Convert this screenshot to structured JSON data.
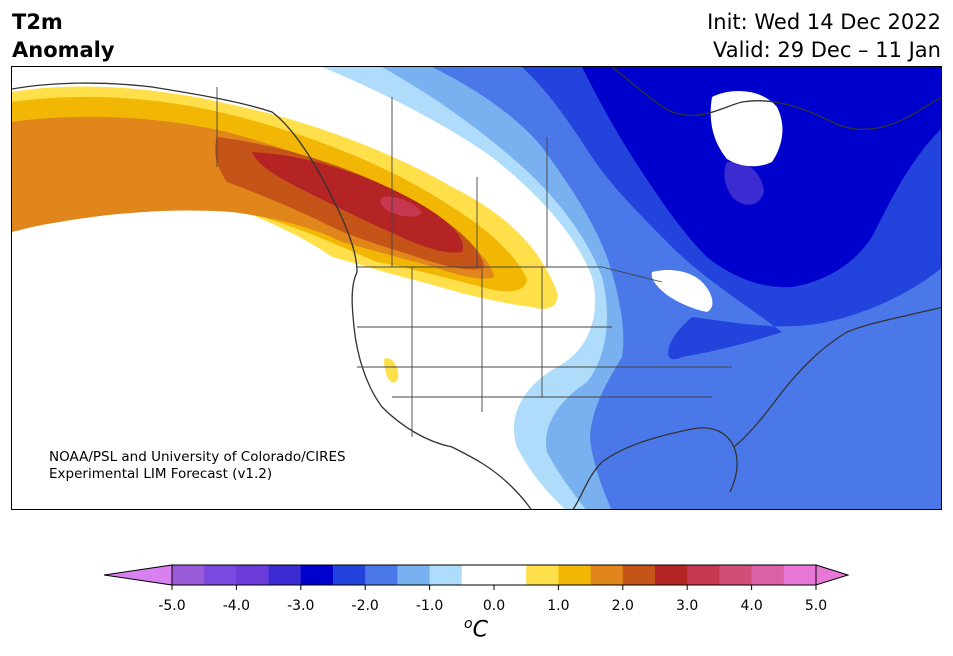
{
  "header": {
    "variable": "T2m",
    "product": "Anomaly",
    "init": "Init: Wed 14 Dec 2022",
    "valid": "Valid: 29 Dec – 11 Jan"
  },
  "map": {
    "region": "North America",
    "credit_line1": "NOAA/PSL and University of Colorado/CIRES",
    "credit_line2": "Experimental LIM Forecast (v1.2)"
  },
  "colorbar": {
    "unit_superscript": "o",
    "unit_symbol": "C",
    "ticks": [
      "-5.0",
      "-4.0",
      "-3.0",
      "-2.0",
      "-1.0",
      "0.0",
      "1.0",
      "2.0",
      "3.0",
      "4.0",
      "5.0"
    ],
    "bins": [
      {
        "min": -5.0,
        "max": -4.5,
        "color": "#9b5ad8"
      },
      {
        "min": -4.5,
        "max": -4.0,
        "color": "#7a4ae0"
      },
      {
        "min": -4.0,
        "max": -3.5,
        "color": "#6a3bd8"
      },
      {
        "min": -3.5,
        "max": -3.0,
        "color": "#3b2bd0"
      },
      {
        "min": -3.0,
        "max": -2.5,
        "color": "#0000cc"
      },
      {
        "min": -2.5,
        "max": -2.0,
        "color": "#2244dd"
      },
      {
        "min": -2.0,
        "max": -1.5,
        "color": "#4a78e8"
      },
      {
        "min": -1.5,
        "max": -1.0,
        "color": "#78b0f0"
      },
      {
        "min": -1.0,
        "max": -0.5,
        "color": "#aedcfa"
      },
      {
        "min": -0.5,
        "max": 0.5,
        "color": "#ffffff"
      },
      {
        "min": 0.5,
        "max": 1.0,
        "color": "#ffe04a"
      },
      {
        "min": 1.0,
        "max": 1.5,
        "color": "#f2b705"
      },
      {
        "min": 1.5,
        "max": 2.0,
        "color": "#e0861a"
      },
      {
        "min": 2.0,
        "max": 2.5,
        "color": "#c45418"
      },
      {
        "min": 2.5,
        "max": 3.0,
        "color": "#b42424"
      },
      {
        "min": 3.0,
        "max": 3.5,
        "color": "#c63850"
      },
      {
        "min": 3.5,
        "max": 4.0,
        "color": "#d04e78"
      },
      {
        "min": 4.0,
        "max": 4.5,
        "color": "#dc62a8"
      },
      {
        "min": 4.5,
        "max": 5.0,
        "color": "#e878d8"
      }
    ],
    "under_color": "#d880f0",
    "over_color": "#e878d8"
  }
}
